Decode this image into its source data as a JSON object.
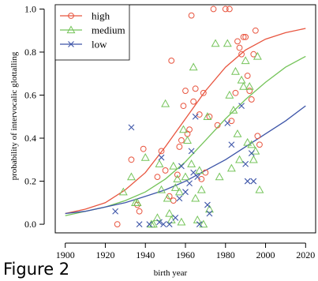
{
  "figure_caption": "Figure 2",
  "chart_data": {
    "type": "scatter",
    "title": "",
    "xlabel": "birth year",
    "ylabel": "probability of intervocalic glottalling",
    "xlim": [
      1895,
      2025
    ],
    "ylim": [
      -0.04,
      1.02
    ],
    "xticks": [
      1900,
      1920,
      1940,
      1960,
      1980,
      2000,
      2020
    ],
    "yticks": [
      0.0,
      0.2,
      0.4,
      0.6,
      0.8,
      1.0
    ],
    "ytick_labels": [
      "0.0",
      "0.2",
      "0.4",
      "0.6",
      "0.8",
      "1.0"
    ],
    "grid": false,
    "legend_position": "top-left",
    "series": [
      {
        "name": "high",
        "marker": "circle",
        "color": "#e8553f",
        "points": [
          [
            1926,
            0.0
          ],
          [
            1933,
            0.3
          ],
          [
            1936,
            0.09
          ],
          [
            1937,
            0.06
          ],
          [
            1939,
            0.35
          ],
          [
            1946,
            0.22
          ],
          [
            1948,
            0.34
          ],
          [
            1950,
            0.25
          ],
          [
            1952,
            0.13
          ],
          [
            1953,
            0.76
          ],
          [
            1954,
            0.11
          ],
          [
            1956,
            0.23
          ],
          [
            1957,
            0.36
          ],
          [
            1958,
            0.39
          ],
          [
            1959,
            0.55
          ],
          [
            1960,
            0.62
          ],
          [
            1961,
            0.42
          ],
          [
            1962,
            0.44
          ],
          [
            1963,
            0.97
          ],
          [
            1964,
            0.57
          ],
          [
            1965,
            0.63
          ],
          [
            1967,
            0.51
          ],
          [
            1968,
            0.21
          ],
          [
            1969,
            0.61
          ],
          [
            1970,
            0.24
          ],
          [
            1972,
            0.5
          ],
          [
            1974,
            1.0
          ],
          [
            1976,
            0.46
          ],
          [
            1980,
            1.0
          ],
          [
            1982,
            1.0
          ],
          [
            1983,
            0.48
          ],
          [
            1985,
            0.61
          ],
          [
            1986,
            0.85
          ],
          [
            1987,
            0.82
          ],
          [
            1988,
            0.79
          ],
          [
            1989,
            0.87
          ],
          [
            1990,
            0.87
          ],
          [
            1991,
            0.69
          ],
          [
            1992,
            0.62
          ],
          [
            1993,
            0.58
          ],
          [
            1994,
            0.79
          ],
          [
            1995,
            0.9
          ],
          [
            1996,
            0.41
          ],
          [
            1997,
            0.37
          ]
        ]
      },
      {
        "name": "medium",
        "marker": "triangle",
        "color": "#75c45a",
        "points": [
          [
            1929,
            0.15
          ],
          [
            1933,
            0.22
          ],
          [
            1935,
            0.1
          ],
          [
            1936,
            0.1
          ],
          [
            1940,
            0.31
          ],
          [
            1943,
            0.0
          ],
          [
            1944,
            0.0
          ],
          [
            1946,
            0.03
          ],
          [
            1947,
            0.28
          ],
          [
            1948,
            0.16
          ],
          [
            1950,
            0.56
          ],
          [
            1951,
            0.12
          ],
          [
            1952,
            0.05
          ],
          [
            1953,
            0.02
          ],
          [
            1954,
            0.27
          ],
          [
            1955,
            0.17
          ],
          [
            1956,
            0.21
          ],
          [
            1957,
            0.15
          ],
          [
            1958,
            0.01
          ],
          [
            1959,
            0.44
          ],
          [
            1960,
            0.22
          ],
          [
            1961,
            0.39
          ],
          [
            1963,
            0.28
          ],
          [
            1964,
            0.73
          ],
          [
            1965,
            0.12
          ],
          [
            1966,
            0.02
          ],
          [
            1967,
            0.25
          ],
          [
            1968,
            0.16
          ],
          [
            1969,
            0.0
          ],
          [
            1971,
            0.5
          ],
          [
            1972,
            0.07
          ],
          [
            1975,
            0.84
          ],
          [
            1977,
            0.22
          ],
          [
            1981,
            0.84
          ],
          [
            1982,
            0.6
          ],
          [
            1983,
            0.26
          ],
          [
            1984,
            0.53
          ],
          [
            1985,
            0.71
          ],
          [
            1986,
            0.42
          ],
          [
            1987,
            0.3
          ],
          [
            1988,
            0.67
          ],
          [
            1989,
            0.64
          ],
          [
            1990,
            0.76
          ],
          [
            1991,
            0.38
          ],
          [
            1992,
            0.64
          ],
          [
            1993,
            0.37
          ],
          [
            1994,
            0.3
          ],
          [
            1995,
            0.34
          ],
          [
            1996,
            0.78
          ],
          [
            1997,
            0.16
          ]
        ]
      },
      {
        "name": "low",
        "marker": "x",
        "color": "#3d55a8",
        "points": [
          [
            1925,
            0.06
          ],
          [
            1933,
            0.45
          ],
          [
            1937,
            0.0
          ],
          [
            1942,
            0.0
          ],
          [
            1947,
            0.01
          ],
          [
            1948,
            0.31
          ],
          [
            1949,
            0.0
          ],
          [
            1952,
            0.0
          ],
          [
            1955,
            0.03
          ],
          [
            1957,
            0.12
          ],
          [
            1958,
            0.27
          ],
          [
            1960,
            0.15
          ],
          [
            1962,
            0.19
          ],
          [
            1963,
            0.34
          ],
          [
            1964,
            0.24
          ],
          [
            1965,
            0.5
          ],
          [
            1966,
            0.22
          ],
          [
            1967,
            0.0
          ],
          [
            1971,
            0.09
          ],
          [
            1972,
            0.05
          ],
          [
            1981,
            0.47
          ],
          [
            1983,
            0.37
          ],
          [
            1988,
            0.55
          ],
          [
            1990,
            0.28
          ],
          [
            1991,
            0.2
          ],
          [
            1993,
            0.33
          ],
          [
            1994,
            0.2
          ]
        ]
      }
    ],
    "fitted_curves": [
      {
        "name": "high",
        "color": "#e8553f",
        "x": [
          1900,
          1910,
          1920,
          1930,
          1940,
          1950,
          1960,
          1970,
          1980,
          1990,
          2000,
          2010,
          2020
        ],
        "y": [
          0.05,
          0.07,
          0.1,
          0.16,
          0.24,
          0.36,
          0.49,
          0.62,
          0.73,
          0.81,
          0.86,
          0.89,
          0.91
        ]
      },
      {
        "name": "medium",
        "color": "#75c45a",
        "x": [
          1900,
          1910,
          1920,
          1930,
          1940,
          1950,
          1960,
          1970,
          1980,
          1990,
          2000,
          2010,
          2020
        ],
        "y": [
          0.04,
          0.06,
          0.08,
          0.11,
          0.15,
          0.21,
          0.29,
          0.39,
          0.49,
          0.58,
          0.66,
          0.73,
          0.78
        ]
      },
      {
        "name": "low",
        "color": "#3d55a8",
        "x": [
          1900,
          1910,
          1920,
          1930,
          1940,
          1950,
          1960,
          1970,
          1980,
          1990,
          2000,
          2010,
          2020
        ],
        "y": [
          0.05,
          0.06,
          0.08,
          0.1,
          0.13,
          0.16,
          0.2,
          0.25,
          0.3,
          0.36,
          0.42,
          0.48,
          0.55
        ]
      }
    ]
  }
}
